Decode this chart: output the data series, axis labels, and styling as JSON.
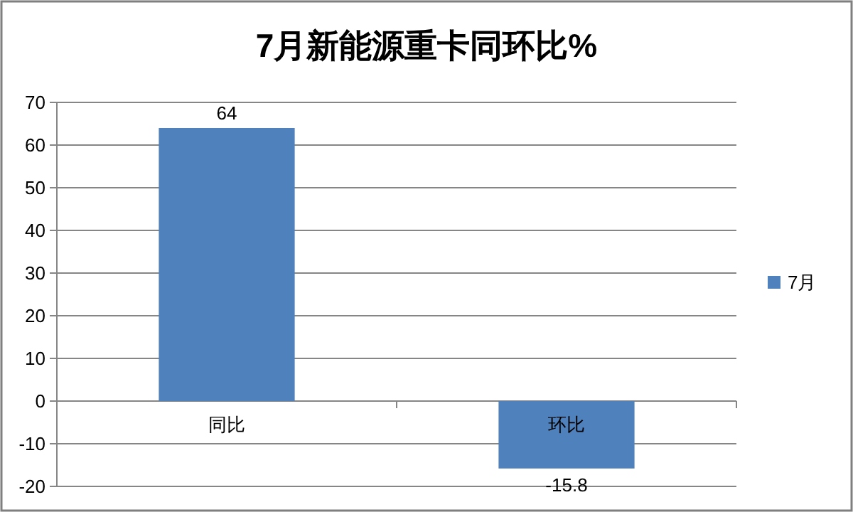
{
  "chart_data": {
    "type": "bar",
    "title": "7月新能源重卡同环比%",
    "categories": [
      "同比",
      "环比"
    ],
    "series": [
      {
        "name": "7月",
        "color": "#4f81bd",
        "values": [
          64,
          -15.8
        ]
      }
    ],
    "ylim": [
      -20,
      70
    ],
    "yticks": [
      -20,
      -10,
      0,
      10,
      20,
      30,
      40,
      50,
      60,
      70
    ],
    "grid": "y",
    "legend": "right",
    "data_labels": true
  }
}
